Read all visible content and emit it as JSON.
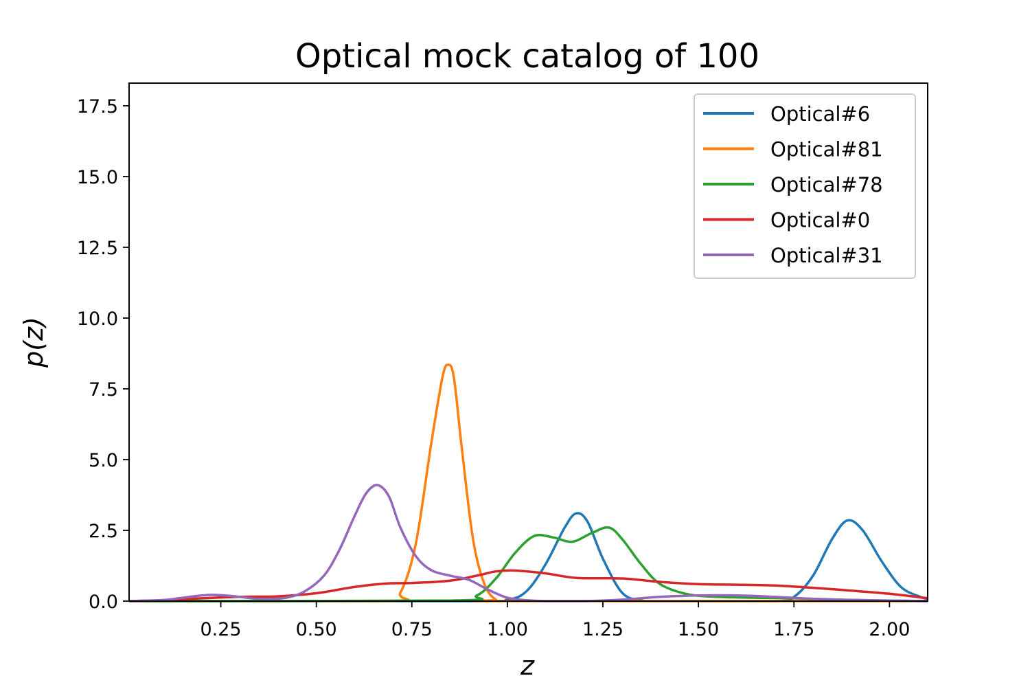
{
  "chart_data": {
    "type": "line",
    "title": "Optical mock catalog of 100",
    "xlabel": "z",
    "ylabel": "p(z)",
    "xlim": [
      0.01,
      2.1
    ],
    "ylim": [
      0,
      18.3
    ],
    "xticks": [
      "0.25",
      "0.50",
      "0.75",
      "1.00",
      "1.25",
      "1.50",
      "1.75",
      "2.00"
    ],
    "yticks": [
      "0.0",
      "2.5",
      "5.0",
      "7.5",
      "10.0",
      "12.5",
      "15.0",
      "17.5"
    ],
    "grid": false,
    "legend_position": "top-right",
    "series": [
      {
        "name": "Optical#6",
        "color": "#1f77b4",
        "x": [
          0.01,
          0.9,
          1.0,
          1.05,
          1.1,
          1.15,
          1.18,
          1.21,
          1.25,
          1.3,
          1.35,
          1.4,
          1.7,
          1.75,
          1.8,
          1.85,
          1.89,
          1.93,
          1.98,
          2.03,
          2.08,
          2.1
        ],
        "y": [
          0.0,
          0.0,
          0.05,
          0.35,
          1.3,
          2.6,
          3.1,
          2.8,
          1.5,
          0.3,
          0.02,
          0.0,
          0.0,
          0.15,
          0.9,
          2.2,
          2.85,
          2.5,
          1.4,
          0.5,
          0.15,
          0.08
        ]
      },
      {
        "name": "Optical#81",
        "color": "#ff7f0e",
        "x": [
          0.01,
          0.68,
          0.72,
          0.76,
          0.8,
          0.83,
          0.845,
          0.86,
          0.88,
          0.91,
          0.94,
          0.97,
          1.0,
          2.1
        ],
        "y": [
          0.0,
          0.0,
          0.3,
          2.0,
          5.5,
          7.9,
          8.35,
          7.9,
          5.5,
          2.2,
          0.6,
          0.05,
          0.0,
          0.0
        ]
      },
      {
        "name": "Optical#78",
        "color": "#2ca02c",
        "x": [
          0.01,
          0.85,
          0.92,
          0.97,
          1.02,
          1.07,
          1.12,
          1.17,
          1.22,
          1.265,
          1.3,
          1.35,
          1.4,
          1.47,
          1.55,
          1.65,
          1.75,
          1.85,
          1.95,
          2.1
        ],
        "y": [
          0.0,
          0.02,
          0.2,
          0.8,
          1.7,
          2.3,
          2.25,
          2.1,
          2.4,
          2.6,
          2.2,
          1.3,
          0.6,
          0.25,
          0.15,
          0.12,
          0.1,
          0.06,
          0.03,
          0.0
        ]
      },
      {
        "name": "Optical#0",
        "color": "#d62728",
        "x": [
          0.01,
          0.1,
          0.2,
          0.3,
          0.4,
          0.5,
          0.6,
          0.68,
          0.75,
          0.85,
          0.92,
          0.97,
          1.02,
          1.1,
          1.18,
          1.3,
          1.4,
          1.5,
          1.6,
          1.7,
          1.8,
          1.9,
          2.0,
          2.1
        ],
        "y": [
          0.0,
          0.03,
          0.1,
          0.15,
          0.17,
          0.28,
          0.5,
          0.62,
          0.64,
          0.72,
          0.9,
          1.05,
          1.08,
          0.98,
          0.82,
          0.8,
          0.68,
          0.6,
          0.58,
          0.55,
          0.47,
          0.37,
          0.26,
          0.1
        ]
      },
      {
        "name": "Optical#31",
        "color": "#9467bd",
        "x": [
          0.01,
          0.1,
          0.15,
          0.2,
          0.23,
          0.28,
          0.35,
          0.42,
          0.47,
          0.52,
          0.56,
          0.6,
          0.63,
          0.66,
          0.69,
          0.72,
          0.76,
          0.8,
          0.85,
          0.9,
          0.95,
          1.0,
          1.05,
          1.1,
          1.2,
          1.3,
          1.4,
          1.5,
          1.6,
          1.7,
          1.8,
          1.9,
          2.0,
          2.1
        ],
        "y": [
          0.0,
          0.04,
          0.12,
          0.2,
          0.22,
          0.18,
          0.08,
          0.12,
          0.35,
          0.9,
          1.8,
          3.0,
          3.8,
          4.1,
          3.7,
          2.6,
          1.6,
          1.1,
          0.9,
          0.75,
          0.4,
          0.12,
          0.03,
          0.0,
          0.0,
          0.05,
          0.15,
          0.2,
          0.2,
          0.15,
          0.08,
          0.04,
          0.02,
          0.0
        ]
      }
    ]
  }
}
